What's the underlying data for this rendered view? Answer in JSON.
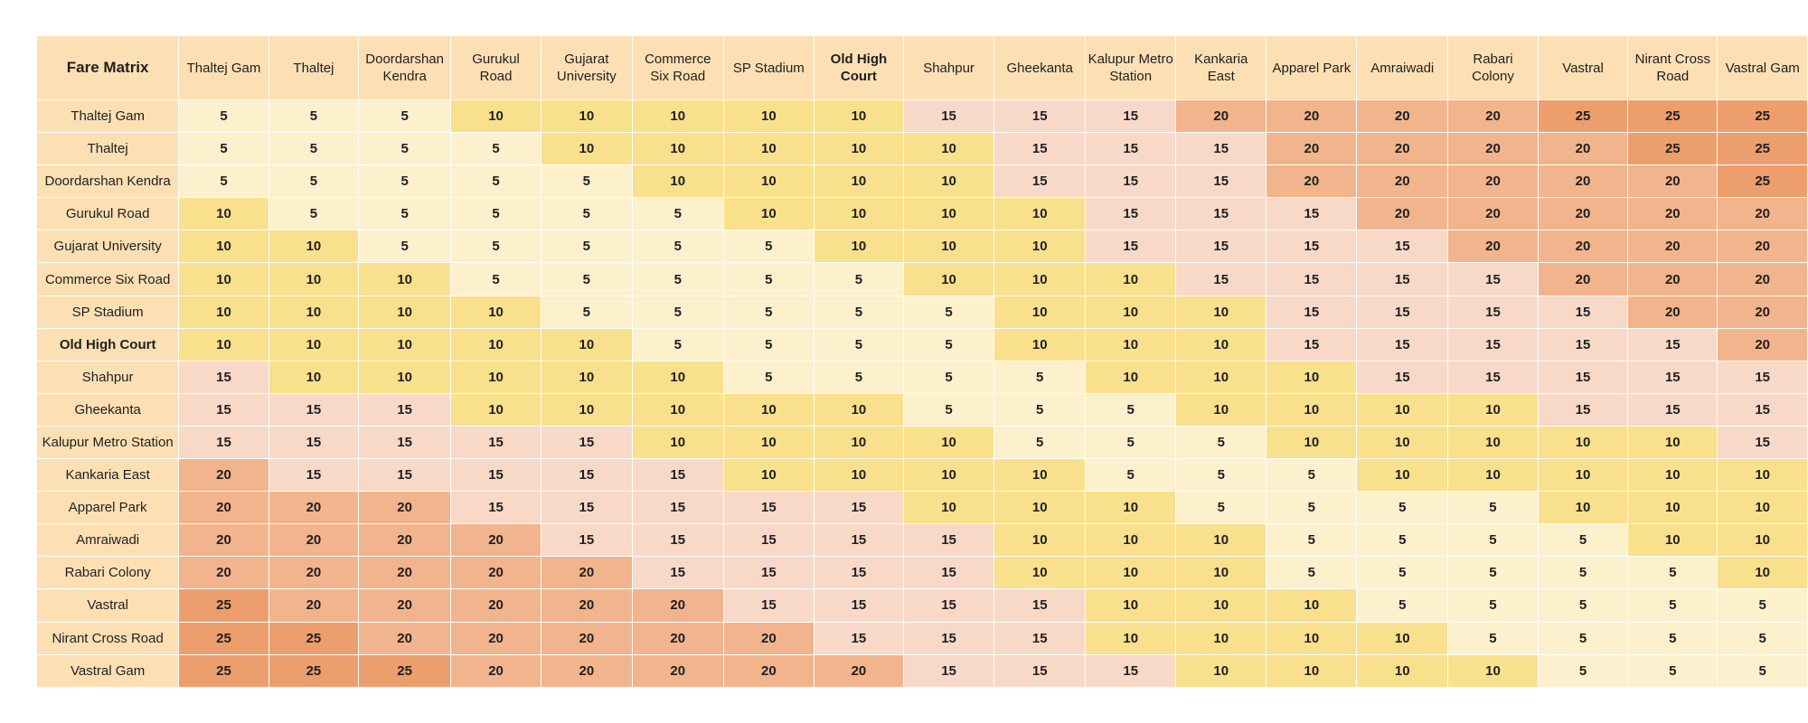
{
  "chart_data": {
    "type": "heatmap",
    "title": "Fare Matrix",
    "highlight_station": "Old High Court",
    "stations": [
      "Thaltej Gam",
      "Thaltej",
      "Doordarshan Kendra",
      "Gurukul Road",
      "Gujarat University",
      "Commerce Six Road",
      "SP Stadium",
      "Old High Court",
      "Shahpur",
      "Gheekanta",
      "Kalupur Metro Station",
      "Kankaria East",
      "Apparel Park",
      "Amraiwadi",
      "Rabari Colony",
      "Vastral",
      "Nirant Cross Road",
      "Vastral Gam"
    ],
    "column_labels": [
      [
        "Thaltej Gam"
      ],
      [
        "Thaltej"
      ],
      [
        "Doordarshan",
        "Kendra"
      ],
      [
        "Gurukul",
        "Road"
      ],
      [
        "Gujarat",
        "University"
      ],
      [
        "Commerce",
        "Six Road"
      ],
      [
        "SP Stadium"
      ],
      [
        "Old High",
        "Court"
      ],
      [
        "Shahpur"
      ],
      [
        "Gheekanta"
      ],
      [
        "Kalupur Metro",
        "Station"
      ],
      [
        "Kankaria",
        "East"
      ],
      [
        "Apparel Park"
      ],
      [
        "Amraiwadi"
      ],
      [
        "Rabari",
        "Colony"
      ],
      [
        "Vastral"
      ],
      [
        "Nirant Cross",
        "Road"
      ],
      [
        "Vastral Gam"
      ]
    ],
    "values": [
      [
        5,
        5,
        5,
        10,
        10,
        10,
        10,
        10,
        15,
        15,
        15,
        20,
        20,
        20,
        20,
        25,
        25,
        25
      ],
      [
        5,
        5,
        5,
        5,
        10,
        10,
        10,
        10,
        10,
        15,
        15,
        15,
        20,
        20,
        20,
        20,
        25,
        25
      ],
      [
        5,
        5,
        5,
        5,
        5,
        10,
        10,
        10,
        10,
        15,
        15,
        15,
        20,
        20,
        20,
        20,
        20,
        25
      ],
      [
        10,
        5,
        5,
        5,
        5,
        5,
        10,
        10,
        10,
        10,
        15,
        15,
        15,
        20,
        20,
        20,
        20,
        20
      ],
      [
        10,
        10,
        5,
        5,
        5,
        5,
        5,
        10,
        10,
        10,
        15,
        15,
        15,
        15,
        20,
        20,
        20,
        20
      ],
      [
        10,
        10,
        10,
        5,
        5,
        5,
        5,
        5,
        10,
        10,
        10,
        15,
        15,
        15,
        15,
        20,
        20,
        20
      ],
      [
        10,
        10,
        10,
        10,
        5,
        5,
        5,
        5,
        5,
        10,
        10,
        10,
        15,
        15,
        15,
        15,
        20,
        20
      ],
      [
        10,
        10,
        10,
        10,
        10,
        5,
        5,
        5,
        5,
        10,
        10,
        10,
        15,
        15,
        15,
        15,
        15,
        20
      ],
      [
        15,
        10,
        10,
        10,
        10,
        10,
        5,
        5,
        5,
        5,
        10,
        10,
        10,
        15,
        15,
        15,
        15,
        15
      ],
      [
        15,
        15,
        15,
        10,
        10,
        10,
        10,
        10,
        5,
        5,
        5,
        10,
        10,
        10,
        10,
        15,
        15,
        15
      ],
      [
        15,
        15,
        15,
        15,
        15,
        10,
        10,
        10,
        10,
        5,
        5,
        5,
        10,
        10,
        10,
        10,
        10,
        15
      ],
      [
        20,
        15,
        15,
        15,
        15,
        15,
        10,
        10,
        10,
        10,
        5,
        5,
        5,
        10,
        10,
        10,
        10,
        10
      ],
      [
        20,
        20,
        20,
        15,
        15,
        15,
        15,
        15,
        10,
        10,
        10,
        5,
        5,
        5,
        5,
        10,
        10,
        10
      ],
      [
        20,
        20,
        20,
        20,
        15,
        15,
        15,
        15,
        15,
        10,
        10,
        10,
        5,
        5,
        5,
        5,
        10,
        10
      ],
      [
        20,
        20,
        20,
        20,
        20,
        15,
        15,
        15,
        15,
        10,
        10,
        10,
        5,
        5,
        5,
        5,
        5,
        10
      ],
      [
        25,
        20,
        20,
        20,
        20,
        20,
        15,
        15,
        15,
        15,
        10,
        10,
        10,
        5,
        5,
        5,
        5,
        5
      ],
      [
        25,
        25,
        20,
        20,
        20,
        20,
        20,
        15,
        15,
        15,
        10,
        10,
        10,
        10,
        5,
        5,
        5,
        5
      ],
      [
        25,
        25,
        25,
        20,
        20,
        20,
        20,
        20,
        15,
        15,
        15,
        10,
        10,
        10,
        10,
        5,
        5,
        5
      ]
    ],
    "color_scale": {
      "5": "#fdf0cd",
      "10": "#f9e08c",
      "15": "#f8d9c8",
      "20": "#f1b48c",
      "25": "#ec9e6c"
    },
    "header_color": "#fce0b4"
  }
}
